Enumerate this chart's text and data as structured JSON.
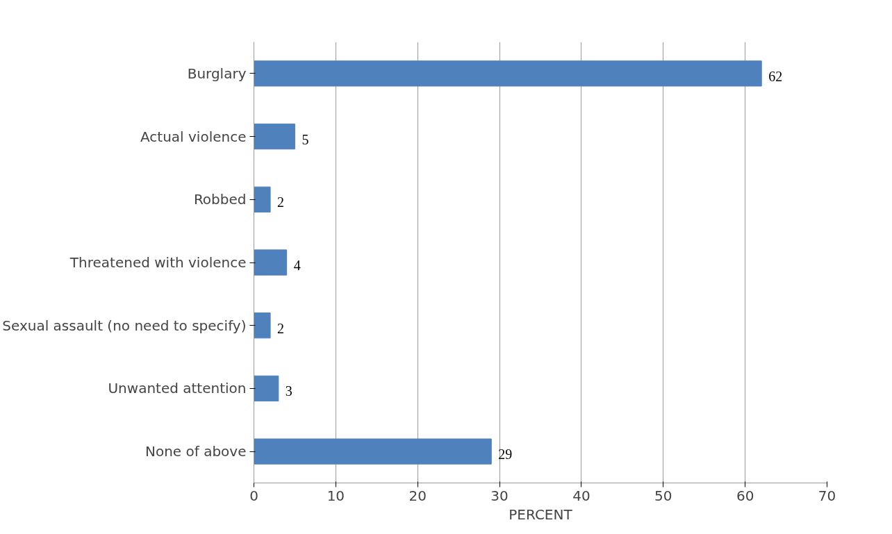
{
  "chart_data": {
    "type": "bar",
    "orientation": "horizontal",
    "categories": [
      "Burglary",
      "Actual violence",
      "Robbed",
      "Threatened with violence",
      "Sexual assault (no need to specify)",
      "Unwanted attention",
      "None of above"
    ],
    "values": [
      62,
      5,
      2,
      4,
      2,
      3,
      29
    ],
    "color": "#4f81bd",
    "xlabel": "PERCENT",
    "xlim": [
      0,
      70
    ],
    "xticks": [
      0,
      10,
      20,
      30,
      40,
      50,
      60,
      70
    ],
    "grid": "x",
    "data_labels": true
  }
}
